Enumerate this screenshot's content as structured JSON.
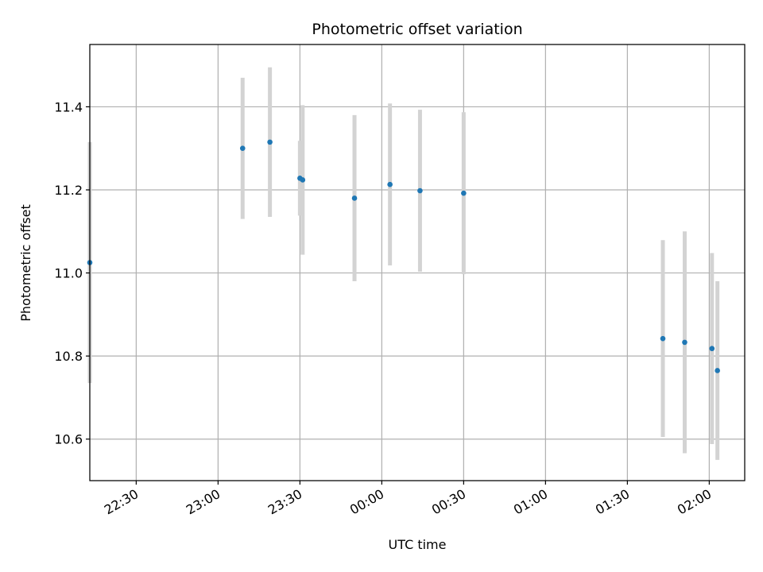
{
  "chart_data": {
    "type": "scatter",
    "title": "Photometric offset variation",
    "xlabel": "UTC time",
    "ylabel": "Photometric offset",
    "x_axis_kind": "time",
    "x_reference_date": "",
    "xlim": [
      "22:13",
      "02:13"
    ],
    "ylim": [
      10.5,
      11.55
    ],
    "xticks": [
      "22:30",
      "23:00",
      "23:30",
      "00:00",
      "00:30",
      "01:00",
      "01:30",
      "02:00"
    ],
    "yticks": [
      "10.6",
      "10.8",
      "11.0",
      "11.2",
      "11.4"
    ],
    "grid": true,
    "marker_color": "#1f77b4",
    "errorbar_color": "#d3d3d3",
    "series": [
      {
        "points": [
          {
            "t": "22:13",
            "y": 11.025,
            "err": 0.29
          },
          {
            "t": "23:09",
            "y": 11.3,
            "err": 0.17
          },
          {
            "t": "23:19",
            "y": 11.315,
            "err": 0.18
          },
          {
            "t": "23:30",
            "y": 11.228,
            "err": 0.09
          },
          {
            "t": "23:31",
            "y": 11.224,
            "err": 0.18
          },
          {
            "t": "23:50",
            "y": 11.18,
            "err": 0.2
          },
          {
            "t": "00:03",
            "y": 11.213,
            "err": 0.195
          },
          {
            "t": "00:14",
            "y": 11.198,
            "err": 0.195
          },
          {
            "t": "00:30",
            "y": 11.192,
            "err": 0.195
          },
          {
            "t": "01:43",
            "y": 10.842,
            "err": 0.237
          },
          {
            "t": "01:51",
            "y": 10.833,
            "err": 0.267
          },
          {
            "t": "02:01",
            "y": 10.818,
            "err": 0.23
          },
          {
            "t": "02:03",
            "y": 10.765,
            "err": 0.215
          }
        ]
      }
    ]
  }
}
